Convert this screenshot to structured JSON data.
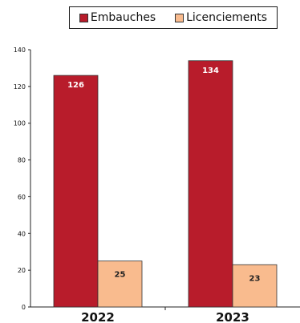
{
  "chart_data": {
    "type": "bar",
    "categories": [
      "2022",
      "2023"
    ],
    "series": [
      {
        "name": "Embauches",
        "values": [
          126,
          134
        ],
        "value_labels": [
          "126",
          "134"
        ],
        "color": "#b81c2b"
      },
      {
        "name": "Licenciements",
        "values": [
          25,
          23
        ],
        "value_labels": [
          "25",
          "23"
        ],
        "color": "#f9bb8e"
      }
    ],
    "ylim": [
      0,
      140
    ],
    "yticks": [
      "0",
      "20",
      "40",
      "60",
      "80",
      "100",
      "120",
      "140"
    ],
    "grid": false,
    "legend_position": "top-right",
    "title": "",
    "xlabel": "",
    "ylabel": ""
  }
}
